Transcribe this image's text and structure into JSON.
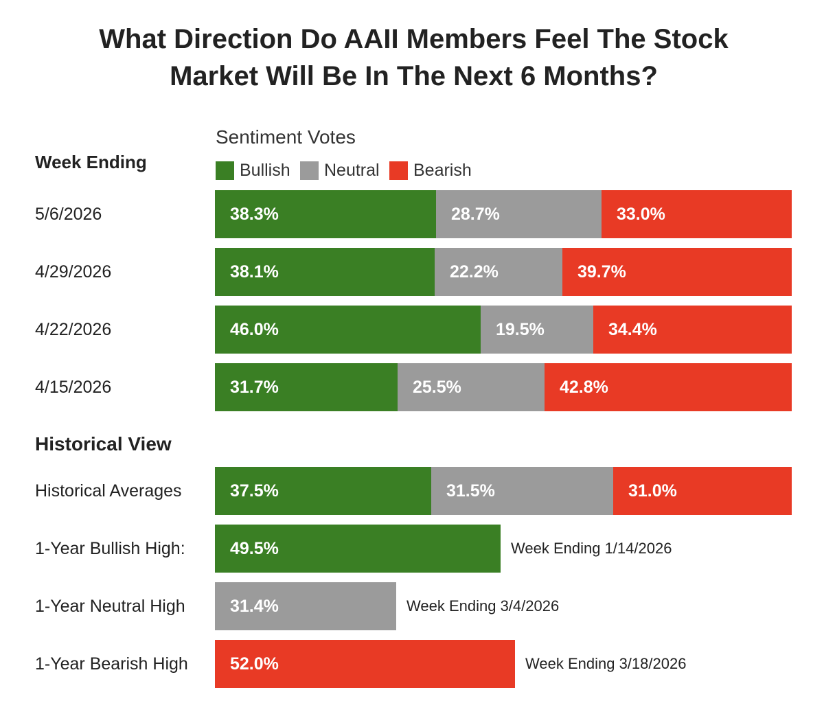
{
  "title_line1": "What Direction Do AAII Members Feel The Stock",
  "title_line2": "Market Will Be In The Next 6 Months?",
  "colors": {
    "bullish": "#3a7f24",
    "neutral": "#9b9b9b",
    "bearish": "#e83a25"
  },
  "chart_data": {
    "type": "bar",
    "orientation": "horizontal",
    "stacked": true,
    "legend_title": "Sentiment Votes",
    "legend": [
      "Bullish",
      "Neutral",
      "Bearish"
    ],
    "section1_label": "Week Ending",
    "weekly": [
      {
        "label": "5/6/2026",
        "bullish": 38.3,
        "neutral": 28.7,
        "bearish": 33.0,
        "bullish_text": "38.3%",
        "neutral_text": "28.7%",
        "bearish_text": "33.0%"
      },
      {
        "label": "4/29/2026",
        "bullish": 38.1,
        "neutral": 22.2,
        "bearish": 39.7,
        "bullish_text": "38.1%",
        "neutral_text": "22.2%",
        "bearish_text": "39.7%"
      },
      {
        "label": "4/22/2026",
        "bullish": 46.0,
        "neutral": 19.5,
        "bearish": 34.4,
        "bullish_text": "46.0%",
        "neutral_text": "19.5%",
        "bearish_text": "34.4%"
      },
      {
        "label": "4/15/2026",
        "bullish": 31.7,
        "neutral": 25.5,
        "bearish": 42.8,
        "bullish_text": "31.7%",
        "neutral_text": "25.5%",
        "bearish_text": "42.8%"
      }
    ],
    "section2_label": "Historical View",
    "historical_average": {
      "label": "Historical Averages",
      "bullish": 37.5,
      "neutral": 31.5,
      "bearish": 31.0,
      "bullish_text": "37.5%",
      "neutral_text": "31.5%",
      "bearish_text": "31.0%"
    },
    "highs": [
      {
        "label": "1-Year Bullish High:",
        "series": "bullish",
        "value": 49.5,
        "value_text": "49.5%",
        "note": "Week Ending 1/14/2026"
      },
      {
        "label": "1-Year Neutral High",
        "series": "neutral",
        "value": 31.4,
        "value_text": "31.4%",
        "note": "Week Ending 3/4/2026"
      },
      {
        "label": "1-Year Bearish High",
        "series": "bearish",
        "value": 52.0,
        "value_text": "52.0%",
        "note": "Week Ending 3/18/2026"
      }
    ]
  }
}
